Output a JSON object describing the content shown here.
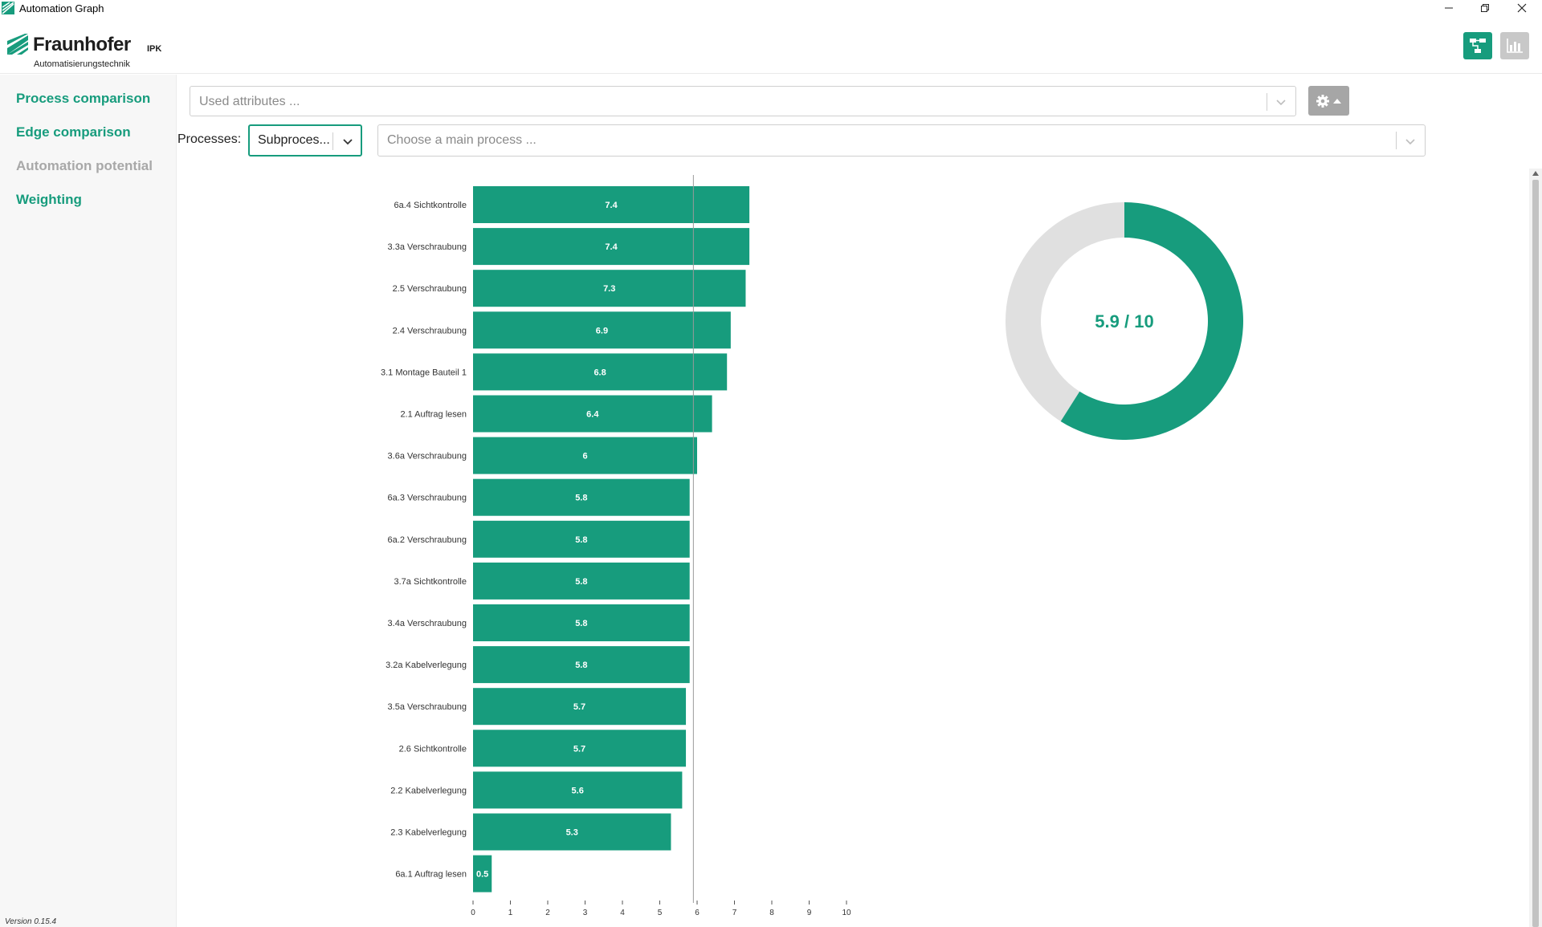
{
  "window": {
    "title": "Automation Graph"
  },
  "header": {
    "brand": "Fraunhofer",
    "brand_suffix": "IPK",
    "department": "Automatisierungstechnik"
  },
  "sidebar": {
    "items": [
      {
        "label": "Process comparison",
        "state": "active"
      },
      {
        "label": "Edge comparison",
        "state": "active"
      },
      {
        "label": "Automation potential",
        "state": "disabled"
      },
      {
        "label": "Weighting",
        "state": "active"
      }
    ],
    "version": "Version 0.15.4"
  },
  "controls": {
    "attributes_placeholder": "Used attributes ...",
    "processes_label": "Processes:",
    "process_type_value": "Subproces...",
    "main_process_placeholder": "Choose a main process ..."
  },
  "colors": {
    "accent": "#179c7d",
    "muted": "#e0e0e0"
  },
  "icons": {
    "graph": "graph-icon",
    "chart": "bar-chart-icon",
    "settings": "gear-icon"
  },
  "chart_data": [
    {
      "type": "bar",
      "orientation": "horizontal",
      "categories": [
        "6a.4 Sichtkontrolle",
        "3.3a Verschraubung",
        "2.5 Verschraubung",
        "2.4 Verschraubung",
        "3.1 Montage Bauteil 1",
        "2.1 Auftrag lesen",
        "3.6a Verschraubung",
        "6a.3 Verschraubung",
        "6a.2 Verschraubung",
        "3.7a Sichtkontrolle",
        "3.4a Verschraubung",
        "3.2a Kabelverlegung",
        "3.5a Verschraubung",
        "2.6 Sichtkontrolle",
        "2.2 Kabelverlegung",
        "2.3 Kabelverlegung",
        "6a.1 Auftrag lesen"
      ],
      "values": [
        7.4,
        7.4,
        7.3,
        6.9,
        6.8,
        6.4,
        6,
        5.8,
        5.8,
        5.8,
        5.8,
        5.8,
        5.7,
        5.7,
        5.6,
        5.3,
        0.5
      ],
      "value_labels": [
        "7.4",
        "7.4",
        "7.3",
        "6.9",
        "6.8",
        "6.4",
        "6",
        "5.8",
        "5.8",
        "5.8",
        "5.8",
        "5.8",
        "5.7",
        "5.7",
        "5.6",
        "5.3",
        "0.5"
      ],
      "xlim": [
        0,
        10
      ],
      "xticks": [
        "0",
        "1",
        "2",
        "3",
        "4",
        "5",
        "6",
        "7",
        "8",
        "9",
        "10"
      ],
      "reference_line": 5.9,
      "grid": false
    },
    {
      "type": "pie",
      "style": "donut",
      "value": 5.9,
      "max": 10,
      "center_label": "5.9 / 10"
    }
  ]
}
